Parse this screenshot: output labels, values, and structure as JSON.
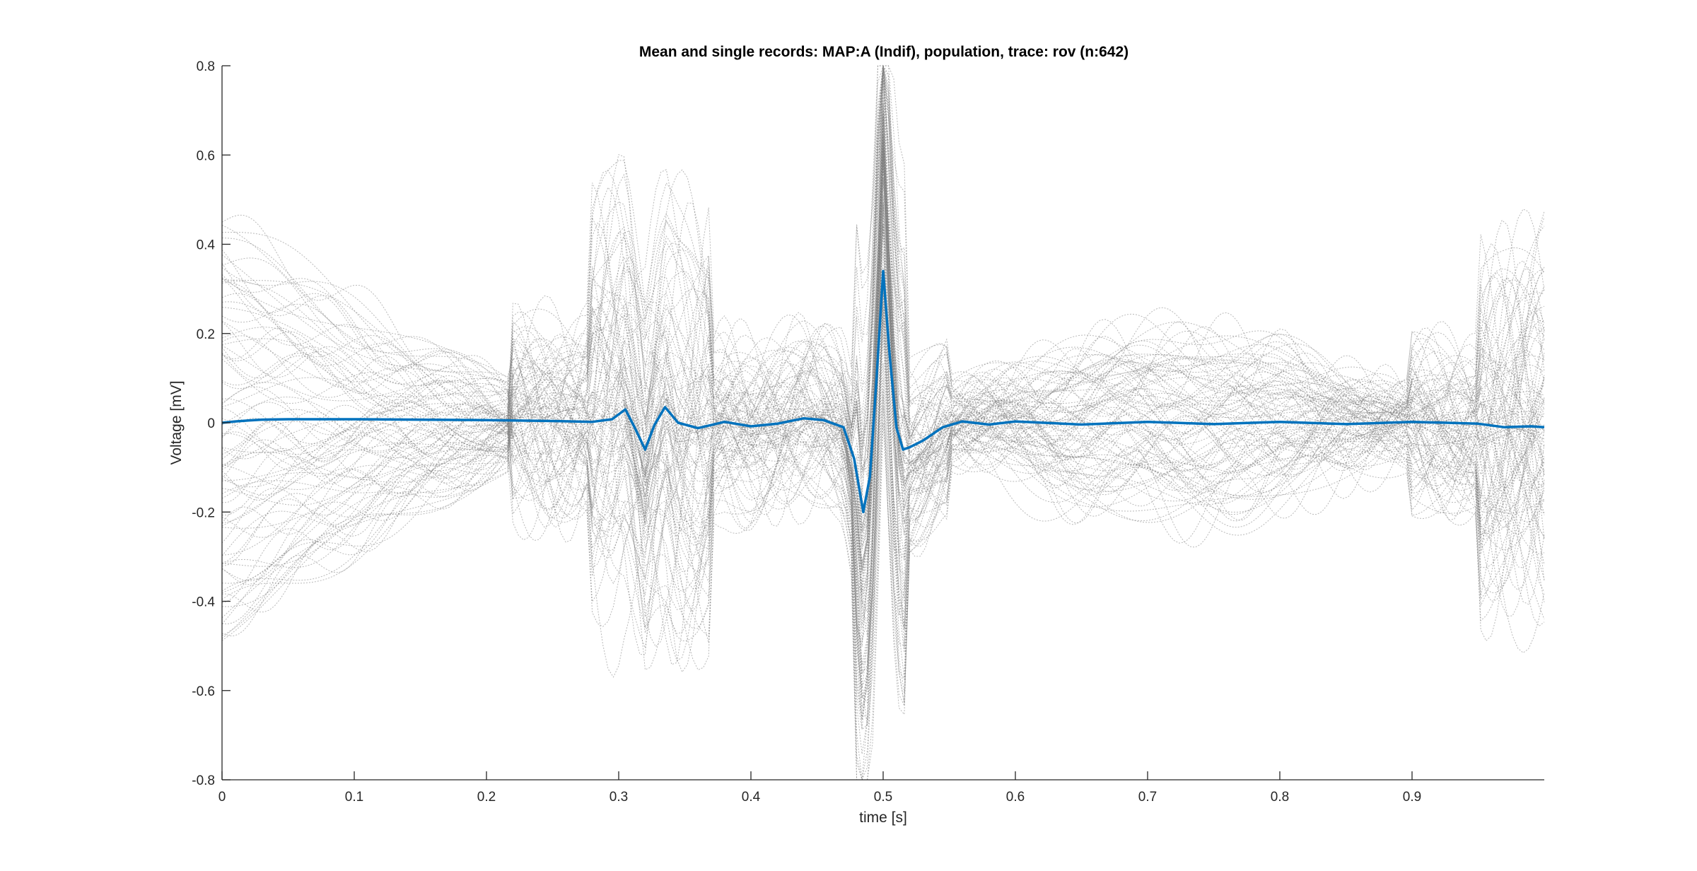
{
  "chart_data": {
    "type": "line",
    "title": "Mean and single records: MAP:A (Indif), population, trace: rov (n:642)",
    "xlabel": "time [s]",
    "ylabel": "Voltage [mV]",
    "xlim": [
      0,
      1
    ],
    "ylim": [
      -0.8,
      0.8
    ],
    "xticks": [
      0,
      0.1,
      0.2,
      0.3,
      0.4,
      0.5,
      0.6,
      0.7,
      0.8,
      0.9
    ],
    "xtick_labels": [
      "0",
      "0.1",
      "0.2",
      "0.3",
      "0.4",
      "0.5",
      "0.6",
      "0.7",
      "0.8",
      "0.9"
    ],
    "yticks": [
      -0.8,
      -0.6,
      -0.4,
      -0.2,
      0,
      0.2,
      0.4,
      0.6,
      0.8
    ],
    "ytick_labels": [
      "-0.8",
      "-0.6",
      "-0.4",
      "-0.2",
      "0",
      "0.2",
      "0.4",
      "0.6",
      "0.8"
    ],
    "grid": false,
    "legend": "none",
    "colors": {
      "mean": "#0072BD",
      "records": "#808080"
    },
    "mean_trace": {
      "x": [
        0,
        0.01,
        0.02,
        0.03,
        0.05,
        0.1,
        0.15,
        0.2,
        0.25,
        0.28,
        0.295,
        0.305,
        0.312,
        0.32,
        0.327,
        0.335,
        0.345,
        0.36,
        0.38,
        0.4,
        0.42,
        0.44,
        0.455,
        0.47,
        0.478,
        0.485,
        0.49,
        0.495,
        0.5,
        0.505,
        0.51,
        0.515,
        0.52,
        0.53,
        0.545,
        0.56,
        0.58,
        0.6,
        0.65,
        0.7,
        0.75,
        0.8,
        0.85,
        0.9,
        0.95,
        0.97,
        0.99,
        1.0
      ],
      "y": [
        0.0,
        0.003,
        0.005,
        0.007,
        0.008,
        0.008,
        0.007,
        0.006,
        0.004,
        0.002,
        0.008,
        0.03,
        -0.01,
        -0.06,
        -0.005,
        0.035,
        0.0,
        -0.012,
        0.002,
        -0.008,
        -0.002,
        0.01,
        0.006,
        -0.01,
        -0.08,
        -0.2,
        -0.12,
        0.1,
        0.34,
        0.15,
        -0.01,
        -0.06,
        -0.055,
        -0.04,
        -0.01,
        0.003,
        -0.004,
        0.003,
        -0.004,
        0.002,
        -0.003,
        0.002,
        -0.003,
        0.002,
        -0.002,
        -0.01,
        -0.008,
        -0.01
      ]
    },
    "records": {
      "count": 642,
      "segments": [
        {
          "x_range": [
            0,
            0.22
          ],
          "amplitude": 0.5
        },
        {
          "x_range": [
            0.22,
            0.28
          ],
          "amplitude": 0.3
        },
        {
          "x_range": [
            0.28,
            0.37
          ],
          "amplitude": 0.6
        },
        {
          "x_range": [
            0.37,
            0.48
          ],
          "amplitude": 0.25
        },
        {
          "x_range": [
            0.48,
            0.52
          ],
          "amplitude": 0.7
        },
        {
          "x_range": [
            0.52,
            0.95
          ],
          "amplitude": 0.25
        },
        {
          "x_range": [
            0.95,
            1.0
          ],
          "amplitude": 0.55
        }
      ]
    }
  }
}
